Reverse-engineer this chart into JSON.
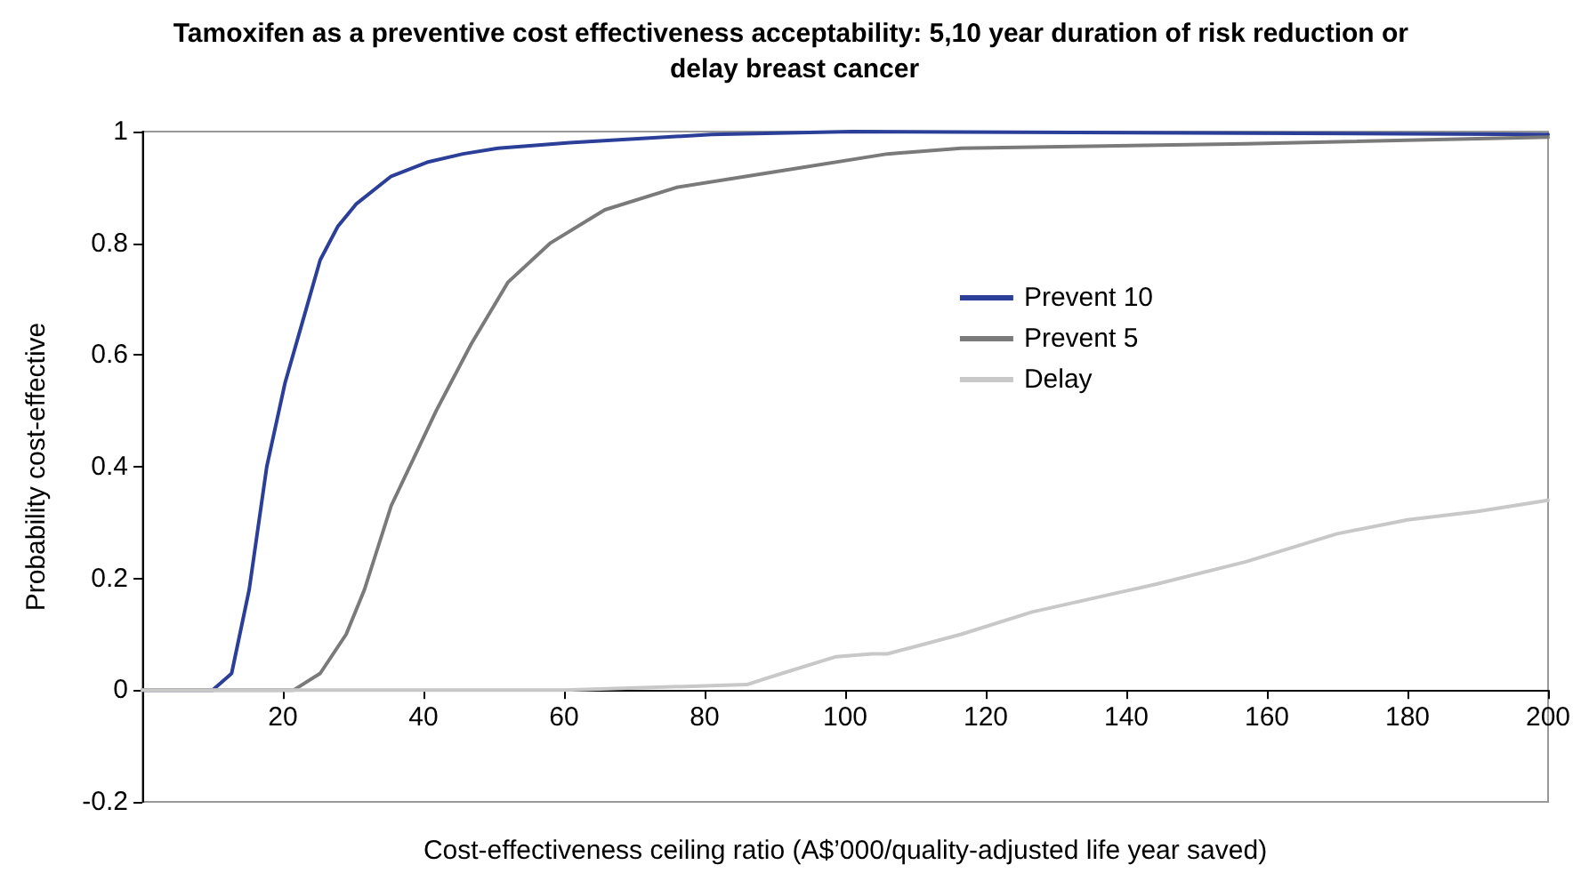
{
  "chart_data": {
    "type": "line",
    "title": "Tamoxifen as a preventive cost effectiveness acceptability: 5,10 year duration of risk reduction or delay breast cancer",
    "xlabel": "Cost-effectiveness ceiling ratio (A$’000/quality-adjusted life year saved)",
    "ylabel": "Probability cost-effective",
    "xlim": [
      0,
      200
    ],
    "xticks": [
      {
        "value": 0,
        "label": null
      },
      20,
      40,
      60,
      80,
      100,
      120,
      140,
      160,
      180,
      200
    ],
    "ylim": [
      -0.2,
      1
    ],
    "yticks": [
      -0.2,
      0,
      0.2,
      0.4,
      0.6,
      0.8,
      1
    ],
    "grid": false,
    "legend": "right",
    "marker": "none",
    "line_style": "solid",
    "series": [
      {
        "name": "Prevent 10",
        "color": "#2b3e98",
        "x": [
          0,
          10,
          12.7,
          15.2,
          17.7,
          20.3,
          22.8,
          25.3,
          27.8,
          30.4,
          35.4,
          40.5,
          45.6,
          50.6,
          60.8,
          81,
          101,
          200
        ],
        "values": [
          0,
          0,
          0.03,
          0.18,
          0.4,
          0.55,
          0.66,
          0.77,
          0.83,
          0.87,
          0.92,
          0.945,
          0.96,
          0.97,
          0.98,
          0.995,
          1,
          0.995
        ]
      },
      {
        "name": "Prevent 5",
        "color": "#7a7a7a",
        "x": [
          0,
          21.5,
          25.3,
          29,
          31.6,
          35.4,
          41.8,
          46.8,
          52,
          58,
          65.8,
          76,
          91,
          106,
          116.5,
          157,
          200
        ],
        "values": [
          0,
          0,
          0.03,
          0.1,
          0.18,
          0.33,
          0.5,
          0.62,
          0.73,
          0.8,
          0.86,
          0.9,
          0.93,
          0.96,
          0.97,
          0.978,
          0.99
        ]
      },
      {
        "name": "Delay",
        "color": "#c8c8c8",
        "x": [
          0,
          60,
          86,
          91,
          98.7,
          103.8,
          106,
          116.5,
          126.6,
          144.3,
          157,
          170,
          180,
          190,
          200
        ],
        "values": [
          0,
          0,
          0.01,
          0.03,
          0.06,
          0.065,
          0.065,
          0.1,
          0.14,
          0.19,
          0.23,
          0.28,
          0.305,
          0.32,
          0.34
        ]
      }
    ]
  }
}
